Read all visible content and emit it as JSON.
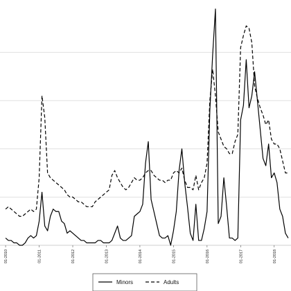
{
  "chart_data": {
    "type": "line",
    "title": "",
    "xlabel": "",
    "ylabel": "",
    "x_range": [
      "01-2010",
      "06-2018"
    ],
    "ylim": [
      0,
      100
    ],
    "y_tick_values": [
      0,
      20,
      40,
      60,
      80
    ],
    "x_tick_labels": [
      "01-2010",
      "01-2011",
      "01-2012",
      "01-2013",
      "01-2014",
      "01-2015",
      "01-2016",
      "01-2017",
      "01-2018"
    ],
    "grid": "horizontal",
    "legend_position": "bottom",
    "x_dates": [
      "2010-01",
      "2010-02",
      "2010-03",
      "2010-04",
      "2010-05",
      "2010-06",
      "2010-07",
      "2010-08",
      "2010-09",
      "2010-10",
      "2010-11",
      "2010-12",
      "2011-01",
      "2011-02",
      "2011-03",
      "2011-04",
      "2011-05",
      "2011-06",
      "2011-07",
      "2011-08",
      "2011-09",
      "2011-10",
      "2011-11",
      "2011-12",
      "2012-01",
      "2012-02",
      "2012-03",
      "2012-04",
      "2012-05",
      "2012-06",
      "2012-07",
      "2012-08",
      "2012-09",
      "2012-10",
      "2012-11",
      "2012-12",
      "2013-01",
      "2013-02",
      "2013-03",
      "2013-04",
      "2013-05",
      "2013-06",
      "2013-07",
      "2013-08",
      "2013-09",
      "2013-10",
      "2013-11",
      "2013-12",
      "2014-01",
      "2014-02",
      "2014-03",
      "2014-04",
      "2014-05",
      "2014-06",
      "2014-07",
      "2014-08",
      "2014-09",
      "2014-10",
      "2014-11",
      "2014-12",
      "2015-01",
      "2015-02",
      "2015-03",
      "2015-04",
      "2015-05",
      "2015-06",
      "2015-07",
      "2015-08",
      "2015-09",
      "2015-10",
      "2015-11",
      "2015-12",
      "2016-01",
      "2016-02",
      "2016-03",
      "2016-04",
      "2016-05",
      "2016-06",
      "2016-07",
      "2016-08",
      "2016-09",
      "2016-10",
      "2016-11",
      "2016-12",
      "2017-01",
      "2017-02",
      "2017-03",
      "2017-04",
      "2017-05",
      "2017-06",
      "2017-07",
      "2017-08",
      "2017-09",
      "2017-10",
      "2017-11",
      "2017-12",
      "2018-01",
      "2018-02",
      "2018-03",
      "2018-04",
      "2018-05",
      "2018-06"
    ],
    "series": [
      {
        "name": "Minors",
        "style": "solid",
        "color": "#000000",
        "values": [
          3,
          2,
          2,
          1,
          1,
          0,
          0,
          1,
          3,
          4,
          3,
          4,
          10,
          22,
          8,
          6,
          12,
          15,
          14,
          14,
          10,
          9,
          5,
          6,
          5,
          4,
          3,
          2,
          2,
          1,
          1,
          1,
          1,
          2,
          2,
          1,
          1,
          1,
          2,
          5,
          8,
          3,
          2,
          2,
          3,
          4,
          12,
          13,
          14,
          17,
          34,
          43,
          19,
          14,
          9,
          4,
          3,
          3,
          4,
          0,
          6,
          14,
          31,
          40,
          26,
          16,
          5,
          2,
          17,
          2,
          2,
          7,
          14,
          56,
          79,
          98,
          9,
          12,
          28,
          16,
          3,
          3,
          2,
          3,
          52,
          58,
          77,
          57,
          62,
          72,
          60,
          48,
          36,
          33,
          42,
          28,
          30,
          26,
          15,
          12,
          5,
          3
        ]
      },
      {
        "name": "Adults",
        "style": "dashed",
        "color": "#000000",
        "values": [
          15,
          16,
          15,
          14,
          13,
          12,
          12,
          13,
          14,
          15,
          14,
          15,
          28,
          62,
          53,
          30,
          28,
          27,
          26,
          25,
          24,
          23,
          21,
          20,
          20,
          19,
          18,
          18,
          17,
          16,
          16,
          16,
          18,
          19,
          20,
          21,
          22,
          23,
          29,
          31,
          28,
          26,
          24,
          23,
          24,
          26,
          28,
          27,
          27,
          28,
          30,
          31,
          31,
          29,
          28,
          27,
          27,
          26,
          27,
          27,
          30,
          31,
          30,
          32,
          27,
          24,
          24,
          23,
          29,
          23,
          26,
          28,
          34,
          60,
          73,
          62,
          47,
          44,
          41,
          40,
          38,
          38,
          43,
          46,
          82,
          87,
          91,
          90,
          84,
          66,
          61,
          57,
          54,
          50,
          52,
          44,
          42,
          42,
          40,
          35,
          30,
          30
        ]
      }
    ]
  }
}
